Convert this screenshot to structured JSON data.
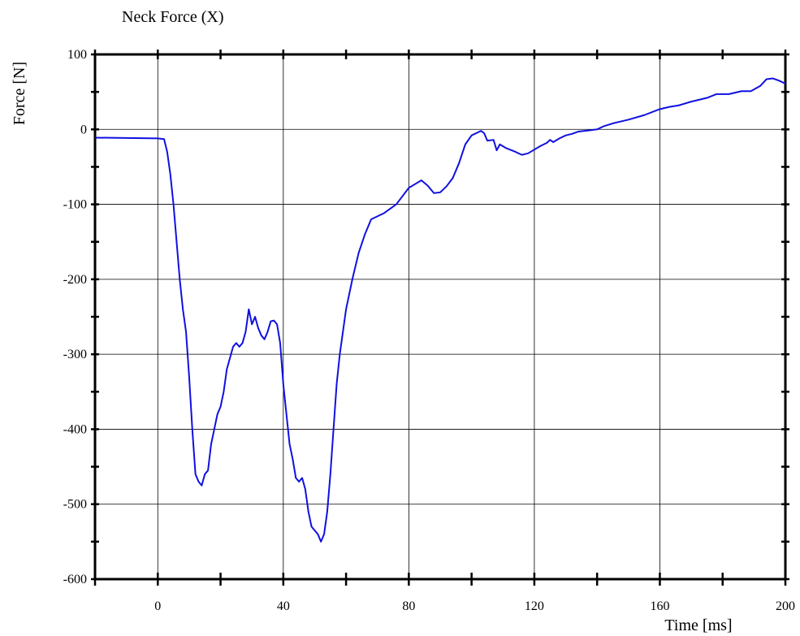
{
  "chart_data": {
    "type": "line",
    "title": "Neck Force (X)",
    "x_label": "Time [ms]",
    "y_label": "Force [N]",
    "color": "#1010e0",
    "grid": true,
    "xlim": [
      -20,
      200
    ],
    "ylim": [
      -600,
      100
    ],
    "xticks": [
      0,
      40,
      80,
      120,
      160,
      200
    ],
    "yticks": [
      -600,
      -500,
      -400,
      -300,
      -200,
      -100,
      0,
      100
    ],
    "xminorticks": [
      -20,
      20,
      60,
      100,
      140,
      180
    ],
    "yminorticks": [
      -550,
      -450,
      -350,
      -250,
      -150,
      -50,
      50
    ],
    "x": [
      -20,
      0,
      2,
      3,
      4,
      5,
      6,
      7,
      8,
      9,
      10,
      11,
      12,
      13,
      14,
      15,
      16,
      17,
      18,
      19,
      20,
      21,
      22,
      23,
      24,
      25,
      26,
      27,
      28,
      29,
      30,
      31,
      32,
      33,
      34,
      35,
      36,
      37,
      38,
      39,
      40,
      41,
      42,
      43,
      44,
      45,
      46,
      47,
      48,
      49,
      50,
      51,
      52,
      53,
      54,
      55,
      56,
      57,
      58,
      60,
      62,
      64,
      66,
      68,
      72,
      76,
      80,
      84,
      86,
      88,
      90,
      92,
      94,
      96,
      98,
      100,
      102,
      103,
      104,
      105,
      107,
      108,
      109,
      111,
      114,
      116,
      118,
      120,
      122,
      124,
      125,
      126,
      128,
      130,
      132,
      134,
      136,
      138,
      140,
      142,
      145,
      150,
      155,
      160,
      163,
      166,
      170,
      175,
      178,
      182,
      186,
      189,
      192,
      194,
      196,
      198,
      200
    ],
    "values": [
      -11,
      -12,
      -13,
      -30,
      -60,
      -100,
      -150,
      -200,
      -240,
      -270,
      -330,
      -400,
      -460,
      -470,
      -475,
      -460,
      -455,
      -420,
      -400,
      -380,
      -370,
      -350,
      -320,
      -305,
      -290,
      -285,
      -290,
      -285,
      -270,
      -240,
      -260,
      -250,
      -265,
      -275,
      -280,
      -270,
      -256,
      -255,
      -260,
      -285,
      -340,
      -380,
      -420,
      -440,
      -465,
      -470,
      -465,
      -480,
      -510,
      -530,
      -535,
      -540,
      -550,
      -540,
      -510,
      -460,
      -400,
      -340,
      -300,
      -240,
      -200,
      -165,
      -140,
      -120,
      -112,
      -100,
      -78,
      -68,
      -75,
      -85,
      -84,
      -76,
      -65,
      -45,
      -20,
      -8,
      -4,
      -2,
      -5,
      -15,
      -14,
      -28,
      -20,
      -25,
      -30,
      -34,
      -32,
      -27,
      -22,
      -18,
      -14,
      -17,
      -12,
      -8,
      -6,
      -3,
      -2,
      -1,
      0,
      4,
      8,
      13,
      19,
      27,
      30,
      32,
      37,
      42,
      47,
      47,
      51,
      51,
      58,
      67,
      68,
      65,
      61
    ]
  }
}
